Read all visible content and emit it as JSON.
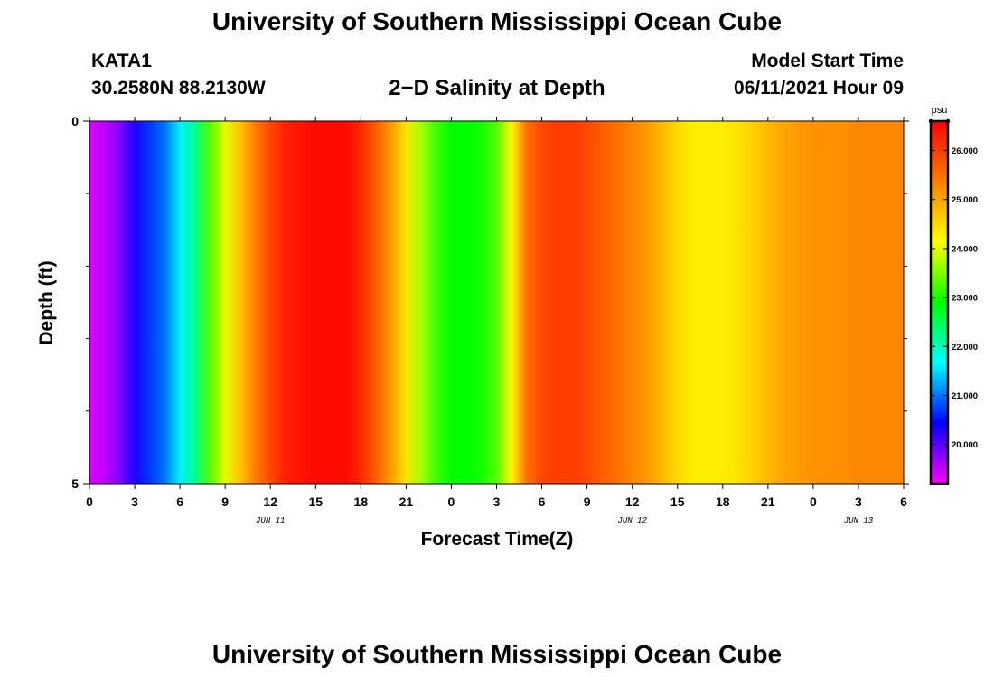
{
  "header": {
    "title": "University of Southern Mississippi Ocean Cube",
    "station": "KATA1",
    "location": "30.2580N  88.2130W",
    "chart_subtitle": "2−D Salinity at Depth",
    "model_start_label": "Model Start Time",
    "model_start_value": "06/11/2021 Hour 09"
  },
  "footer": {
    "title": "University of Southern Mississippi Ocean Cube"
  },
  "colors": {
    "accent": "#ff0000",
    "colormap": [
      "#ff00ff",
      "#0000ff",
      "#00ffff",
      "#00ff00",
      "#ffff00",
      "#ff7f00",
      "#ff0000"
    ]
  },
  "chart_data": {
    "type": "heatmap",
    "title": "2−D Salinity at Depth",
    "xlabel": "Forecast Time(Z)",
    "ylabel": "Depth (ft)",
    "x_tick_labels": [
      "0",
      "3",
      "6",
      "9",
      "12",
      "15",
      "18",
      "21",
      "0",
      "3",
      "6",
      "9",
      "12",
      "15",
      "18",
      "21",
      "0",
      "3",
      "6"
    ],
    "x_hours": [
      0,
      3,
      6,
      9,
      12,
      15,
      18,
      21,
      24,
      27,
      30,
      33,
      36,
      39,
      42,
      45,
      48,
      51,
      54
    ],
    "date_labels": [
      {
        "label": "JUN 11",
        "hour": 12
      },
      {
        "label": "JUN 12",
        "hour": 36
      },
      {
        "label": "JUN 13",
        "hour": 51
      }
    ],
    "xlim": [
      0,
      54
    ],
    "ylim": [
      0,
      5
    ],
    "y_tick_labels": [
      "0",
      "5"
    ],
    "y_minor_ticks": [
      1,
      2,
      3,
      4
    ],
    "grid": false,
    "colorbar": {
      "unit": "psu",
      "range": [
        19.2,
        26.6
      ],
      "ticks": [
        "20.000",
        "21.000",
        "22.000",
        "23.000",
        "24.000",
        "25.000",
        "26.000"
      ],
      "tick_values": [
        20,
        21,
        22,
        23,
        24,
        25,
        26
      ]
    },
    "times": [
      0,
      1,
      2,
      3,
      4,
      5,
      6,
      7,
      8,
      9,
      10,
      11,
      12,
      13,
      14,
      15,
      16,
      17,
      18,
      19,
      20,
      21,
      22,
      23,
      24,
      25,
      26,
      27,
      28,
      29,
      30,
      31,
      32,
      33,
      34,
      35,
      36,
      37,
      38,
      39,
      40,
      41,
      42,
      43,
      44,
      45,
      46,
      47,
      48,
      49,
      50,
      51,
      52,
      53,
      54
    ],
    "salinity": [
      19.4,
      19.5,
      19.8,
      20.3,
      20.7,
      21.0,
      21.6,
      22.2,
      23.3,
      24.0,
      24.7,
      25.4,
      25.9,
      26.3,
      26.4,
      26.5,
      26.5,
      26.5,
      26.2,
      25.7,
      25.1,
      24.4,
      23.7,
      23.2,
      22.9,
      22.9,
      23.0,
      23.3,
      24.2,
      25.5,
      25.9,
      26.0,
      26.0,
      25.9,
      25.7,
      25.5,
      25.3,
      25.1,
      24.8,
      24.5,
      24.3,
      24.3,
      24.3,
      24.4,
      24.6,
      24.8,
      25.0,
      25.1,
      25.2,
      25.2,
      25.2,
      25.3,
      25.3,
      25.3,
      25.3
    ]
  }
}
